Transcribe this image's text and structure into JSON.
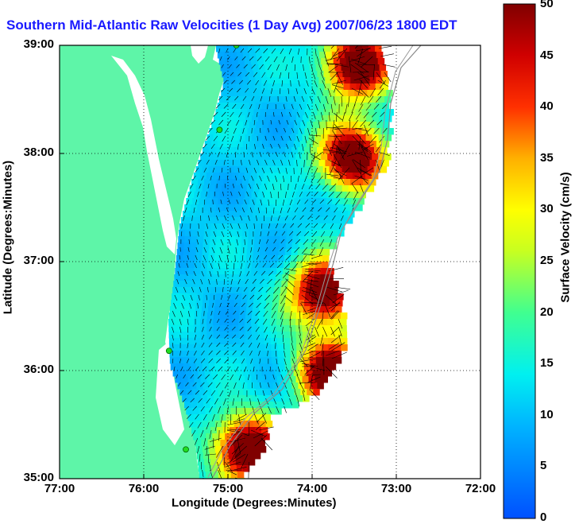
{
  "title": "Southern Mid-Atlantic Raw Velocities (1 Day Avg) 2007/06/23 1800 EDT",
  "axes": {
    "xlabel": "Longitude (Degrees:Minutes)",
    "ylabel": "Latitude (Degrees:Minutes)",
    "x_ticks": [
      "77:00",
      "76:00",
      "75:00",
      "74:00",
      "73:00",
      "72:00"
    ],
    "y_ticks": [
      "39:00",
      "38:00",
      "37:00",
      "36:00",
      "35:00"
    ]
  },
  "colorbar": {
    "label": "Surface Velocity (cm/s)",
    "ticks": [
      "50",
      "45",
      "40",
      "35",
      "30",
      "25",
      "20",
      "15",
      "10",
      "5",
      "0"
    ],
    "range": [
      0,
      50
    ]
  },
  "colors": {
    "land": "#5ef5a8",
    "title": "#1a1aff",
    "slow": "#2a7bff",
    "fast": "#8b0000"
  },
  "chart_data": {
    "type": "heatmap",
    "title": "Southern Mid-Atlantic Raw Velocities (1 Day Avg) 2007/06/23 1800 EDT",
    "xlabel": "Longitude (Degrees:Minutes)",
    "ylabel": "Latitude (Degrees:Minutes)",
    "xlim": [
      -77,
      -72
    ],
    "ylim": [
      35,
      39
    ],
    "grid": true,
    "colorbar_range": [
      0,
      50
    ],
    "stations": [
      {
        "lon": -74.9,
        "lat": 39.0
      },
      {
        "lon": -75.1,
        "lat": 38.22
      },
      {
        "lon": -75.7,
        "lat": 36.18
      },
      {
        "lon": -75.5,
        "lat": 35.27
      }
    ]
  }
}
